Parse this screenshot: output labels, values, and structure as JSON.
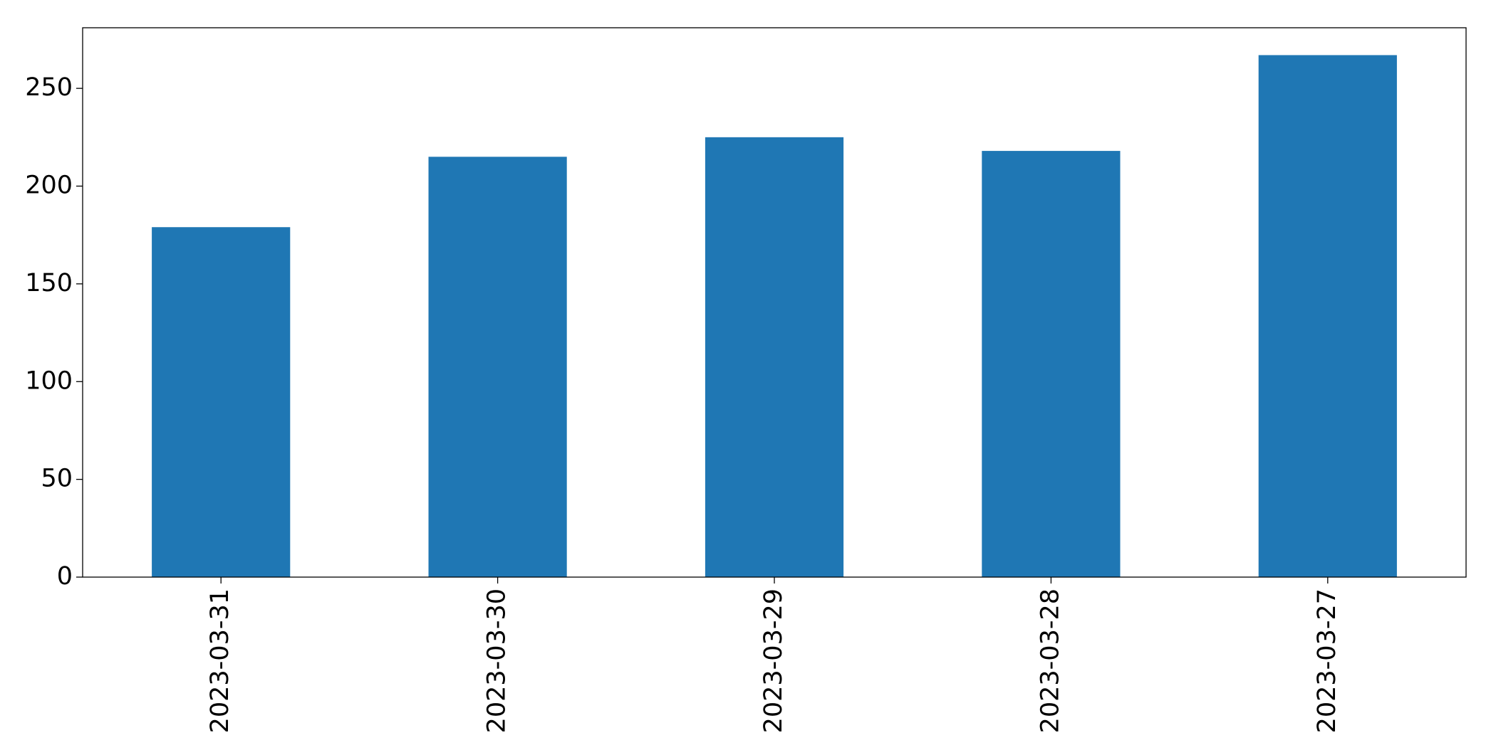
{
  "chart_data": {
    "type": "bar",
    "categories": [
      "2023-03-31",
      "2023-03-30",
      "2023-03-29",
      "2023-03-28",
      "2023-03-27"
    ],
    "values": [
      179,
      215,
      225,
      218,
      267
    ],
    "color": "#1f77b4",
    "ylim": [
      0,
      281
    ],
    "yticks": [
      0,
      50,
      100,
      150,
      200,
      250
    ],
    "grid": false
  }
}
